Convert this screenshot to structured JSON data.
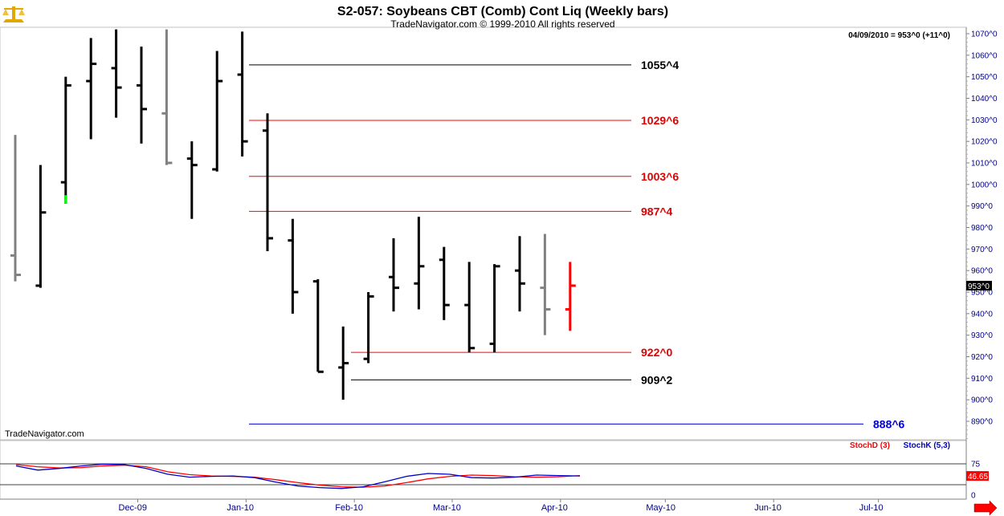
{
  "header": {
    "title": "S2-057:  Soybeans CBT (Comb) Cont Liq  (Weekly bars)",
    "subtitle": "TradeNavigator.com © 1999-2010 All rights reserved",
    "info": "04/09/2010 = 953^0 (+11^0)",
    "watermark": "TradeNavigator.com"
  },
  "colors": {
    "up_bar": "#000000",
    "down_bar": "#808080",
    "highlight_green": "#00ff00",
    "current_bar": "#ff0000",
    "level_red": "#ff0000",
    "level_black": "#000000",
    "level_blue": "#0000cc",
    "stoch_d": "#ff0000",
    "stoch_k": "#0000cc",
    "axis_text": "#00008b"
  },
  "chart_data": [
    {
      "type": "ohlc",
      "yaxis_labels": [
        "1070^0",
        "1060^0",
        "1050^0",
        "1040^0",
        "1030^0",
        "1020^0",
        "1010^0",
        "1000^0",
        "990^0",
        "980^0",
        "970^0",
        "960^0",
        "950^0",
        "940^0",
        "930^0",
        "920^0",
        "910^0",
        "900^0",
        "890^0"
      ],
      "ylim": [
        885,
        1072
      ],
      "xaxis_labels": [
        "Dec-09",
        "Jan-10",
        "Feb-10",
        "Mar-10",
        "Apr-10",
        "May-10",
        "Jun-10",
        "Jul-10"
      ],
      "last_price_tag": "953^0",
      "bars": [
        {
          "date": "2009-10-16",
          "open": 967,
          "high": 1023,
          "low": 955,
          "close": 958,
          "color": "gray"
        },
        {
          "date": "2009-10-23",
          "open": 953,
          "high": 1009,
          "low": 952,
          "close": 987,
          "color": "black"
        },
        {
          "date": "2009-10-30",
          "open": 1001,
          "high": 1050,
          "low": 991,
          "close": 1046,
          "color": "black",
          "low_tail_green": 995
        },
        {
          "date": "2009-11-06",
          "open": 1048,
          "high": 1068,
          "low": 1021,
          "close": 1056,
          "color": "black"
        },
        {
          "date": "2009-11-13",
          "open": 1054,
          "high": 1072,
          "low": 1031,
          "close": 1045,
          "color": "black"
        },
        {
          "date": "2009-11-20",
          "open": 1046,
          "high": 1064,
          "low": 1019,
          "close": 1035,
          "color": "black"
        },
        {
          "date": "2009-11-27",
          "open": 1033,
          "high": 1072,
          "low": 1009,
          "close": 1010,
          "color": "gray"
        },
        {
          "date": "2009-12-04",
          "open": 1012,
          "high": 1020,
          "low": 984,
          "close": 1009,
          "color": "black"
        },
        {
          "date": "2009-12-11",
          "open": 1007,
          "high": 1062,
          "low": 1006,
          "close": 1048,
          "color": "black"
        },
        {
          "date": "2009-12-18",
          "open": 1051,
          "high": 1071,
          "low": 1013,
          "close": 1020,
          "color": "black"
        },
        {
          "date": "2009-12-25",
          "open": 1025,
          "high": 1033,
          "low": 969,
          "close": 975,
          "color": "black"
        },
        {
          "date": "2010-01-01",
          "open": 974,
          "high": 984,
          "low": 940,
          "close": 950,
          "color": "black"
        },
        {
          "date": "2010-01-08",
          "open": 955,
          "high": 956,
          "low": 913,
          "close": 913,
          "color": "black"
        },
        {
          "date": "2010-01-15",
          "open": 915,
          "high": 934,
          "low": 900,
          "close": 917,
          "color": "black"
        },
        {
          "date": "2010-01-22",
          "open": 919,
          "high": 950,
          "low": 917,
          "close": 948,
          "color": "black",
          "low_tail_green": 917
        },
        {
          "date": "2010-01-29",
          "open": 957,
          "high": 975,
          "low": 941,
          "close": 952,
          "color": "black"
        },
        {
          "date": "2010-02-05",
          "open": 954,
          "high": 985,
          "low": 942,
          "close": 962,
          "color": "black"
        },
        {
          "date": "2010-02-12",
          "open": 965,
          "high": 971,
          "low": 937,
          "close": 944,
          "color": "black"
        },
        {
          "date": "2010-02-19",
          "open": 944,
          "high": 964,
          "low": 922,
          "close": 924,
          "color": "black"
        },
        {
          "date": "2010-02-26",
          "open": 926,
          "high": 963,
          "low": 922,
          "close": 962,
          "color": "black"
        },
        {
          "date": "2010-03-05",
          "open": 960,
          "high": 976,
          "low": 941,
          "close": 954,
          "color": "black"
        },
        {
          "date": "2010-03-12",
          "open": 952,
          "high": 977,
          "low": 930,
          "close": 942,
          "color": "gray"
        },
        {
          "date": "2010-03-19",
          "open": 942,
          "high": 964,
          "low": 932,
          "close": 953,
          "color": "red"
        }
      ],
      "levels": [
        {
          "label": "1055^4",
          "value": 1055.5,
          "color": "black"
        },
        {
          "label": "1029^6",
          "value": 1029.75,
          "color": "red"
        },
        {
          "label": "1003^6",
          "value": 1003.75,
          "color": "red"
        },
        {
          "label": "987^4",
          "value": 987.5,
          "color": "red"
        },
        {
          "label": "922^0",
          "value": 922,
          "color": "red"
        },
        {
          "label": "909^2",
          "value": 909.25,
          "color": "black"
        },
        {
          "label": "888^6",
          "value": 888.75,
          "color": "blue"
        }
      ]
    },
    {
      "type": "line",
      "legend": [
        "StochD (3)",
        "StochK (5,3)"
      ],
      "yaxis_labels": [
        "75",
        "0"
      ],
      "ylim": [
        0,
        100
      ],
      "reference_lines": [
        75,
        25
      ],
      "last_value_tag": "46.65",
      "series": [
        {
          "name": "StochD (3)",
          "color": "red",
          "values": [
            [
              0,
              73
            ],
            [
              4,
              68
            ],
            [
              8,
              65
            ],
            [
              12,
              66
            ],
            [
              16,
              70
            ],
            [
              20,
              72
            ],
            [
              24,
              68
            ],
            [
              28,
              56
            ],
            [
              32,
              49
            ],
            [
              36,
              46
            ],
            [
              40,
              45
            ],
            [
              44,
              43
            ],
            [
              48,
              37
            ],
            [
              52,
              30
            ],
            [
              56,
              24
            ],
            [
              60,
              20
            ],
            [
              64,
              19
            ],
            [
              68,
              22
            ],
            [
              72,
              30
            ],
            [
              76,
              39
            ],
            [
              80,
              45
            ],
            [
              84,
              48
            ],
            [
              88,
              47
            ],
            [
              92,
              44
            ],
            [
              96,
              43
            ],
            [
              100,
              44
            ],
            [
              104,
              47
            ]
          ]
        },
        {
          "name": "StochK (5,3)",
          "color": "blue",
          "values": [
            [
              0,
              70
            ],
            [
              4,
              60
            ],
            [
              8,
              64
            ],
            [
              12,
              70
            ],
            [
              16,
              74
            ],
            [
              20,
              73
            ],
            [
              24,
              64
            ],
            [
              28,
              50
            ],
            [
              32,
              43
            ],
            [
              36,
              45
            ],
            [
              40,
              46
            ],
            [
              44,
              42
            ],
            [
              48,
              31
            ],
            [
              52,
              22
            ],
            [
              56,
              18
            ],
            [
              60,
              16
            ],
            [
              64,
              20
            ],
            [
              68,
              32
            ],
            [
              72,
              45
            ],
            [
              76,
              52
            ],
            [
              80,
              50
            ],
            [
              84,
              42
            ],
            [
              88,
              41
            ],
            [
              92,
              43
            ],
            [
              96,
              48
            ],
            [
              100,
              47
            ],
            [
              104,
              46
            ]
          ]
        }
      ]
    }
  ]
}
